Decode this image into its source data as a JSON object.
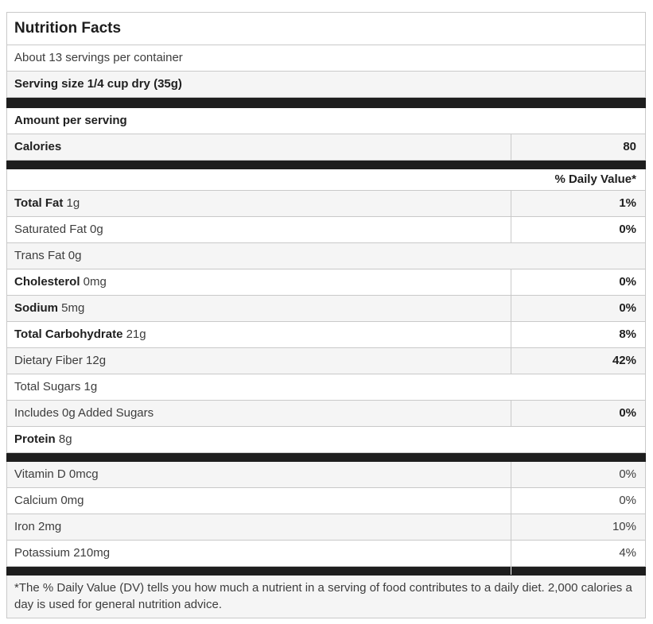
{
  "colors": {
    "section_bar": "#1e1e1e",
    "stripe": "#f5f5f5",
    "row_border": "#c9c9c9",
    "text": "#3d3d3d",
    "text_bold": "#1f1f1f"
  },
  "label": {
    "title": "Nutrition Facts",
    "servings_per_container": "About 13 servings per container",
    "serving_size": "Serving size 1/4 cup dry (35g)",
    "amount_per_serving": "Amount per serving",
    "calories": {
      "name": "Calories",
      "value": "80"
    },
    "daily_value_header": "% Daily Value*",
    "nutrients": [
      {
        "bold": "Total Fat",
        "regular": " 1g",
        "dv": "1%"
      },
      {
        "bold": "",
        "regular": "Saturated Fat 0g",
        "dv": "0%"
      },
      {
        "bold": "",
        "regular": "Trans Fat 0g",
        "dv": ""
      },
      {
        "bold": "Cholesterol",
        "regular": " 0mg",
        "dv": "0%"
      },
      {
        "bold": "Sodium",
        "regular": " 5mg",
        "dv": "0%"
      },
      {
        "bold": "Total Carbohydrate",
        "regular": " 21g",
        "dv": "8%"
      },
      {
        "bold": "",
        "regular": "Dietary Fiber 12g",
        "dv": "42%"
      },
      {
        "bold": "",
        "regular": "Total Sugars 1g",
        "dv": ""
      },
      {
        "bold": "",
        "regular": "Includes 0g Added Sugars",
        "dv": "0%"
      },
      {
        "bold": "Protein",
        "regular": " 8g",
        "dv": ""
      }
    ],
    "micronutrients": [
      {
        "regular": "Vitamin D 0mcg",
        "dv": "0%"
      },
      {
        "regular": "Calcium 0mg",
        "dv": "0%"
      },
      {
        "regular": "Iron 2mg",
        "dv": "10%"
      },
      {
        "regular": "Potassium 210mg",
        "dv": "4%"
      }
    ],
    "footnote": "*The % Daily Value (DV) tells you how much a nutrient in a serving of food contributes to a daily diet. 2,000 calories a day is used for general nutrition advice."
  }
}
